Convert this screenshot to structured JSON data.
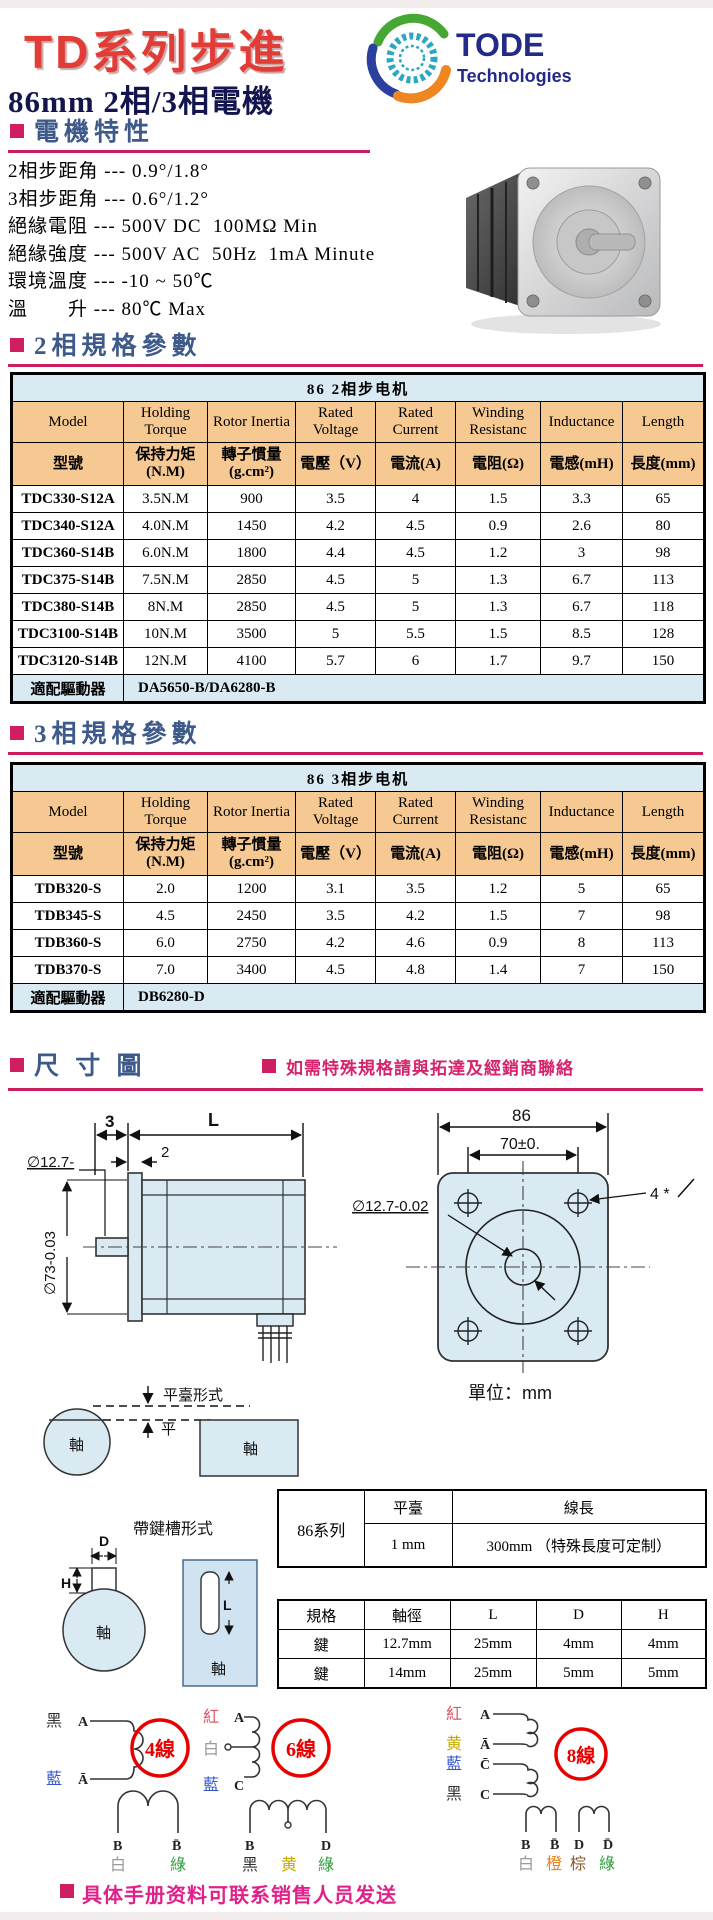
{
  "header": {
    "title": "TD系列步進",
    "subtitle": "86mm 2相/3相電機",
    "logo_name": "TODE",
    "logo_sub": "Technologies"
  },
  "features": {
    "title": "電機特性",
    "items": [
      "2相步距角 --- 0.9°/1.8°",
      "3相步距角 --- 0.6°/1.2°",
      "絕緣電阻 --- 500V DC  100MΩ Min",
      "絕緣強度 --- 500V AC  50Hz  1mA Minute",
      "環境溫度 --- -10 ~ 50℃",
      "溫　　升 --- 80℃ Max"
    ]
  },
  "section2_title": "2相規格參數",
  "section3_title": "3相規格參數",
  "spec_tables": [
    {
      "title": "86 2相步电机",
      "header_en": [
        "Model",
        "Holding Torque",
        "Rotor Inertia",
        "Rated Voltage",
        "Rated Current",
        "Winding Resistanc",
        "Inductance",
        "Length"
      ],
      "header_zh": [
        "型號",
        "保持力矩 (N.M)",
        "轉子慣量 (g.cm²)",
        "電壓（V）",
        "電流(A)",
        "電阻(Ω)",
        "電感(mH)",
        "長度(mm)"
      ],
      "rows": [
        [
          "TDC330-S12A",
          "3.5N.M",
          "900",
          "3.5",
          "4",
          "1.5",
          "3.3",
          "65"
        ],
        [
          "TDC340-S12A",
          "4.0N.M",
          "1450",
          "4.2",
          "4.5",
          "0.9",
          "2.6",
          "80"
        ],
        [
          "TDC360-S14B",
          "6.0N.M",
          "1800",
          "4.4",
          "4.5",
          "1.2",
          "3",
          "98"
        ],
        [
          "TDC375-S14B",
          "7.5N.M",
          "2850",
          "4.5",
          "5",
          "1.3",
          "6.7",
          "113"
        ],
        [
          "TDC380-S14B",
          "8N.M",
          "2850",
          "4.5",
          "5",
          "1.3",
          "6.7",
          "118"
        ],
        [
          "TDC3100-S14B",
          "10N.M",
          "3500",
          "5",
          "5.5",
          "1.5",
          "8.5",
          "128"
        ],
        [
          "TDC3120-S14B",
          "12N.M",
          "4100",
          "5.7",
          "6",
          "1.7",
          "9.7",
          "150"
        ]
      ],
      "footer_label": "適配驅動器",
      "footer_value": "DA5650-B/DA6280-B"
    },
    {
      "title": "86 3相步电机",
      "header_en": [
        "Model",
        "Holding Torque",
        "Rotor Inertia",
        "Rated Voltage",
        "Rated Current",
        "Winding Resistanc",
        "Inductance",
        "Length"
      ],
      "header_zh": [
        "型號",
        "保持力矩 (N.M)",
        "轉子慣量 (g.cm²)",
        "電壓（V）",
        "電流(A)",
        "電阻(Ω)",
        "電感(mH)",
        "長度(mm)"
      ],
      "rows": [
        [
          "TDB320-S",
          "2.0",
          "1200",
          "3.1",
          "3.5",
          "1.2",
          "5",
          "65"
        ],
        [
          "TDB345-S",
          "4.5",
          "2450",
          "3.5",
          "4.2",
          "1.5",
          "7",
          "98"
        ],
        [
          "TDB360-S",
          "6.0",
          "2750",
          "4.2",
          "4.6",
          "0.9",
          "8",
          "113"
        ],
        [
          "TDB370-S",
          "7.0",
          "3400",
          "4.5",
          "4.8",
          "1.4",
          "7",
          "150"
        ]
      ],
      "footer_label": "適配驅動器",
      "footer_value": "DB6280-D"
    }
  ],
  "dimension_section": {
    "title": "尺 寸 圖",
    "note": "如需特殊規格請與拓達及經銷商聯絡",
    "side_view": {
      "dim_front": "3",
      "dim_length": "L",
      "dim_plate": "2",
      "shaft_dia": "∅12.7-",
      "pilot_dia": "∅73-0.03"
    },
    "front_view": {
      "dim_width": "86",
      "dim_holes": "70±0.",
      "shaft_dia": "∅12.7-0.02",
      "holes": "4 *",
      "unit": "單位：mm"
    },
    "flat_form": {
      "title": "平臺形式",
      "flat_label": "平",
      "shaft_label": "軸"
    },
    "key_form": {
      "title": "帶鍵槽形式",
      "d": "D",
      "h": "H",
      "l": "L",
      "shaft_label": "軸"
    }
  },
  "cable_table": {
    "series": "86系列",
    "headers": [
      "平臺",
      "線長"
    ],
    "values": [
      "1 mm",
      "300mm （特殊長度可定制）"
    ]
  },
  "key_table": {
    "headers": [
      "規格",
      "軸徑",
      "L",
      "D",
      "H"
    ],
    "rows": [
      [
        "鍵",
        "12.7mm",
        "25mm",
        "4mm",
        "4mm"
      ],
      [
        "鍵",
        "14mm",
        "25mm",
        "5mm",
        "5mm"
      ]
    ]
  },
  "wiring": [
    {
      "badge": "4線",
      "left": [
        {
          "name": "黑",
          "color": "#333333",
          "terminal": "A"
        },
        {
          "name": "藍",
          "color": "#3355cc",
          "terminal": "Ā"
        }
      ],
      "bottom": [
        {
          "terminal": "B",
          "name": "白",
          "color": "#9a9a9a"
        },
        {
          "terminal": "B̄",
          "name": "綠",
          "color": "#2e9e3e"
        }
      ]
    },
    {
      "badge": "6線",
      "left": [
        {
          "name": "紅",
          "color": "#e05566",
          "terminal": "A"
        },
        {
          "name": "白",
          "color": "#9a9a9a",
          "terminal": ""
        },
        {
          "name": "藍",
          "color": "#3355cc",
          "terminal": "C"
        }
      ],
      "bottom": [
        {
          "terminal": "B",
          "name": "黑",
          "color": "#333333"
        },
        {
          "terminal": "",
          "name": "黄",
          "color": "#c8a800"
        },
        {
          "terminal": "D",
          "name": "綠",
          "color": "#2e9e3e"
        }
      ]
    },
    {
      "badge": "8線",
      "left": [
        {
          "name": "紅",
          "color": "#e05566",
          "terminal": "A"
        },
        {
          "name": "黄",
          "color": "#c8a800",
          "terminal": "Ā"
        },
        {
          "name": "藍",
          "color": "#3355cc",
          "terminal": "C̄"
        },
        {
          "name": "黑",
          "color": "#333333",
          "terminal": "C"
        }
      ],
      "bottom": [
        {
          "terminal": "B",
          "name": "白",
          "color": "#9a9a9a"
        },
        {
          "terminal": "B̄",
          "name": "橙",
          "color": "#e8821a"
        },
        {
          "terminal": "D",
          "name": "棕",
          "color": "#8a5a2b"
        },
        {
          "terminal": "D̄",
          "name": "綠",
          "color": "#2e9e3e"
        }
      ]
    }
  ],
  "footer_note": "具体手册资料可联系销售人员发送",
  "colors": {
    "accent_pink": "#c81e5f",
    "title_red": "#e23c36",
    "navy": "#14144e",
    "section_blue": "#3d5a8a",
    "table_title_bg": "#d9eaf2",
    "table_header_bg": "#f6c993",
    "drawing_fill": "#daeaf3",
    "badge_red": "#e60000"
  }
}
